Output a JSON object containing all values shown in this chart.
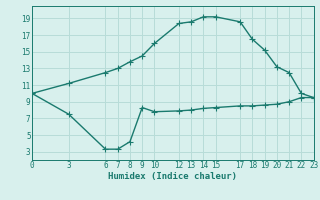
{
  "xlabel": "Humidex (Indice chaleur)",
  "background_color": "#d8f0ed",
  "grid_color": "#b8dcd8",
  "line_color": "#1a7a6e",
  "line1_x": [
    0,
    3,
    6,
    7,
    8,
    9,
    10,
    12,
    13,
    14,
    15,
    17,
    18,
    19,
    20,
    21,
    22,
    23
  ],
  "line1_y": [
    10.0,
    11.2,
    12.5,
    13.0,
    13.8,
    14.5,
    16.0,
    18.4,
    18.6,
    19.2,
    19.2,
    18.6,
    16.5,
    15.2,
    13.2,
    12.5,
    10.0,
    9.5
  ],
  "line2_x": [
    0,
    3,
    6,
    7,
    8,
    9,
    10,
    12,
    13,
    14,
    15,
    17,
    18,
    19,
    20,
    21,
    22,
    23
  ],
  "line2_y": [
    10.0,
    7.5,
    3.3,
    3.3,
    4.2,
    8.3,
    7.8,
    7.9,
    8.0,
    8.2,
    8.3,
    8.5,
    8.5,
    8.6,
    8.7,
    9.0,
    9.5,
    9.5
  ],
  "yticks": [
    3,
    5,
    7,
    9,
    11,
    13,
    15,
    17,
    19
  ],
  "xtick_labels": [
    "0",
    "3",
    "6",
    "7",
    "8",
    "9",
    "10",
    "12",
    "13",
    "14",
    "15",
    "17",
    "18",
    "19",
    "20",
    "21",
    "22",
    "23"
  ],
  "xtick_pos": [
    0,
    3,
    6,
    7,
    8,
    9,
    10,
    12,
    13,
    14,
    15,
    17,
    18,
    19,
    20,
    21,
    22,
    23
  ],
  "ylim": [
    2.0,
    20.5
  ],
  "xlim": [
    0,
    23
  ]
}
